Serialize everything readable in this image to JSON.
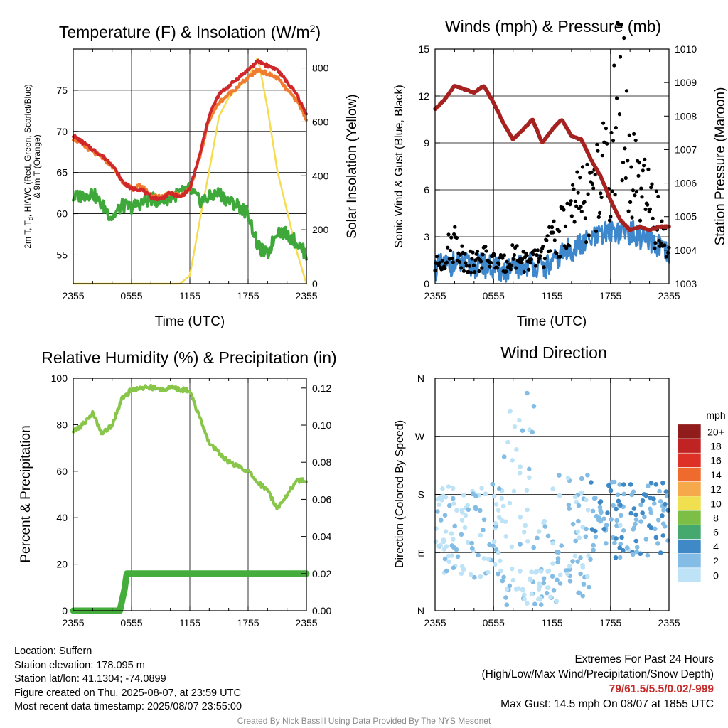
{
  "chart_data": [
    {
      "type": "line",
      "title": "Temperature (F) & Insolation (W/m²)",
      "xlabel": "Time (UTC)",
      "ylabel_left_lines": [
        "2m T, T",
        "HI/WC (Red, Green, Scarlet/Blue)",
        "& 9m T (Orange)"
      ],
      "ylabel_right": "Solar Insolation (Yellow)",
      "x_ticks": [
        "2355",
        "0555",
        "1155",
        "1755",
        "2355"
      ],
      "y_ticks_left": [
        55,
        60,
        65,
        70,
        75
      ],
      "y_ticks_right": [
        0,
        200,
        400,
        600,
        800
      ],
      "ylim_left": [
        51.5,
        80
      ],
      "ylim_right": [
        0,
        870
      ],
      "x_hours": [
        0,
        2,
        3,
        4,
        5,
        6,
        7,
        8,
        9,
        10,
        11,
        12,
        13,
        14,
        15,
        16,
        17,
        18,
        19,
        20,
        21,
        22,
        23,
        24
      ],
      "series": [
        {
          "name": "2m T",
          "color": "#d0282a",
          "values": [
            69.5,
            67.8,
            67,
            66,
            64,
            63,
            63,
            62,
            61.8,
            62.5,
            62,
            63,
            67,
            72,
            74.5,
            75.5,
            76.5,
            77.5,
            78.5,
            78,
            77.5,
            76,
            74.5,
            72
          ]
        },
        {
          "name": "9m T",
          "color": "#f07c30",
          "values": [
            69.2,
            67.5,
            66.8,
            65.8,
            64,
            63,
            63.4,
            62.2,
            62,
            62.6,
            62.2,
            63,
            66.8,
            71.5,
            73.5,
            74.5,
            75.5,
            76.5,
            77.5,
            77,
            76.5,
            75,
            73.8,
            71.5
          ]
        },
        {
          "name": "Td",
          "color": "#3ea93a",
          "values": [
            62,
            62.5,
            61,
            59.5,
            61,
            60.8,
            61.3,
            61.8,
            61.5,
            62,
            62.5,
            63,
            61.5,
            62,
            62.5,
            61.5,
            61,
            60,
            56,
            55,
            58,
            57.5,
            56.5,
            55
          ]
        },
        {
          "name": "Solar",
          "color": "#f5dc50",
          "values": [
            0,
            0,
            0,
            0,
            0,
            0,
            0,
            0,
            0,
            0,
            0,
            30,
            230,
            420,
            620,
            690,
            730,
            760,
            840,
            650,
            420,
            270,
            120,
            0
          ]
        }
      ]
    },
    {
      "type": "line",
      "title": "Winds (mph) & Pressure (mb)",
      "xlabel": "Time (UTC)",
      "ylabel_left": "Sonic Wind & Gust (Blue, Black)",
      "ylabel_right": "Station Pressure (Maroon)",
      "x_ticks": [
        "2355",
        "0555",
        "1155",
        "1755",
        "2355"
      ],
      "y_ticks_left": [
        0,
        3,
        6,
        9,
        12,
        15
      ],
      "y_ticks_right": [
        1003,
        1004,
        1005,
        1006,
        1007,
        1008,
        1009,
        1010
      ],
      "ylim_left": [
        0,
        15
      ],
      "ylim_right": [
        1003,
        1010
      ],
      "x_hours": [
        0,
        1,
        2,
        3,
        4,
        5,
        6,
        7,
        8,
        9,
        10,
        11,
        12,
        13,
        14,
        15,
        16,
        17,
        18,
        19,
        20,
        21,
        22,
        23,
        24
      ],
      "series": [
        {
          "name": "Pressure",
          "color": "#a52220",
          "values": [
            1008.2,
            1008.5,
            1008.9,
            1008.8,
            1008.7,
            1008.9,
            1008.4,
            1007.8,
            1007.3,
            1007.6,
            1007.9,
            1007.2,
            1007.6,
            1007.9,
            1007.4,
            1007.3,
            1006.7,
            1006.2,
            1005.5,
            1004.9,
            1004.6,
            1004.7,
            1004.6,
            1004.7,
            1004.7
          ]
        },
        {
          "name": "Wind",
          "color": "#3d87cc",
          "values": [
            1,
            1.2,
            1.3,
            1.2,
            1.1,
            1.2,
            1,
            0.8,
            0.9,
            1.2,
            1.3,
            1.0,
            1.2,
            1.9,
            2.2,
            2.5,
            2.8,
            3.0,
            3.5,
            3.3,
            3.3,
            3.0,
            2.6,
            2.4,
            1.6
          ]
        },
        {
          "name": "Gust",
          "color": "#000000",
          "values": [
            1.2,
            1.9,
            3.1,
            1.7,
            1.5,
            1.9,
            1.6,
            1.3,
            2.1,
            1.7,
            1.5,
            2.2,
            2.9,
            3.7,
            5.1,
            5.6,
            6.1,
            7.4,
            8.6,
            14.5,
            7.7,
            6.4,
            5.5,
            4.1,
            2.5
          ]
        }
      ]
    },
    {
      "type": "line",
      "title": "Relative Humidity (%) & Precipitation (in)",
      "ylabel_left": "Percent & Precipitation",
      "x_ticks": [
        "2355",
        "0555",
        "1155",
        "1755",
        "2355"
      ],
      "y_ticks_left": [
        0,
        20,
        40,
        60,
        80,
        100
      ],
      "y_ticks_right": [
        "0.00",
        "0.02",
        "0.04",
        "0.06",
        "0.08",
        "0.10",
        "0.12"
      ],
      "ylim_left": [
        0,
        100
      ],
      "ylim_right": [
        0,
        0.1253
      ],
      "x_hours": [
        0,
        1,
        2,
        3,
        4,
        5,
        6,
        7,
        8,
        9,
        10,
        11,
        12,
        13,
        14,
        15,
        16,
        17,
        18,
        19,
        20,
        21,
        22,
        23,
        24
      ],
      "series": [
        {
          "name": "RH",
          "color": "#88c64a",
          "values": [
            77,
            80,
            85,
            76,
            80,
            91,
            95,
            96,
            96,
            95,
            96,
            95,
            95,
            83,
            72,
            68,
            64,
            62,
            60,
            55,
            52,
            44,
            50,
            56,
            56
          ]
        },
        {
          "name": "Precipitation",
          "color": "#45ad3c",
          "values": [
            0,
            0,
            0,
            0,
            0,
            0.02,
            0.02,
            0.02,
            0.02,
            0.02,
            0.02,
            0.02,
            0.02,
            0.02,
            0.02,
            0.02,
            0.02,
            0.02,
            0.02,
            0.02,
            0.02,
            0.02,
            0.02,
            0.02,
            0.02
          ]
        }
      ]
    },
    {
      "type": "scatter",
      "title": "Wind Direction",
      "ylabel_left": "Direction (Colored By Speed)",
      "x_ticks": [
        "2355",
        "0555",
        "1155",
        "1755",
        "2355"
      ],
      "y_ticks_left": [
        "N",
        "E",
        "S",
        "W",
        "N"
      ],
      "ylim": [
        0,
        360
      ],
      "colorbar_unit": "mph",
      "colorbar_labels": [
        "0",
        "2",
        "4",
        "6",
        "8",
        "10",
        "12",
        "14",
        "16",
        "18",
        "20+"
      ],
      "colorbar_colors": [
        "#bfe3f6",
        "#83bce4",
        "#3e89c6",
        "#45a86e",
        "#7dbf46",
        "#f0df4e",
        "#f6a94a",
        "#ef6a2d",
        "#dd3026",
        "#bf2323",
        "#911c1c"
      ]
    }
  ],
  "footer": {
    "location": "Location: Suffern",
    "elevation": "Station elevation: 178.095 m",
    "latlon": "Station lat/lon: 41.1304; -74.0899",
    "created": "Figure created on Thu, 2025-08-07, at 23:59 UTC",
    "recent": "Most recent data timestamp: 2025/08/07 23:55:00",
    "extremes_title": "Extremes For Past 24 Hours",
    "extremes_sub": "(High/Low/Max Wind/Precipitation/Snow Depth)",
    "extremes_values": "79/61.5/5.5/0.02/-999",
    "max_gust": "Max Gust: 14.5 mph On 08/07 at 1855 UTC",
    "credit": "Created By Nick Bassill Using Data Provided By The NYS Mesonet"
  }
}
